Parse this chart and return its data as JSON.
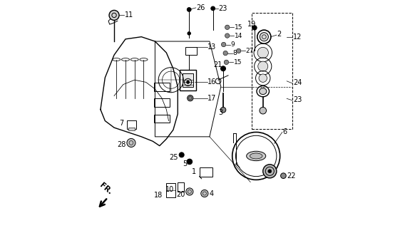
{
  "bg_color": "#ffffff",
  "fig_width": 5.75,
  "fig_height": 3.2,
  "dpi": 100,
  "line_color": "#000000",
  "text_color": "#000000",
  "part_font_size": 7
}
